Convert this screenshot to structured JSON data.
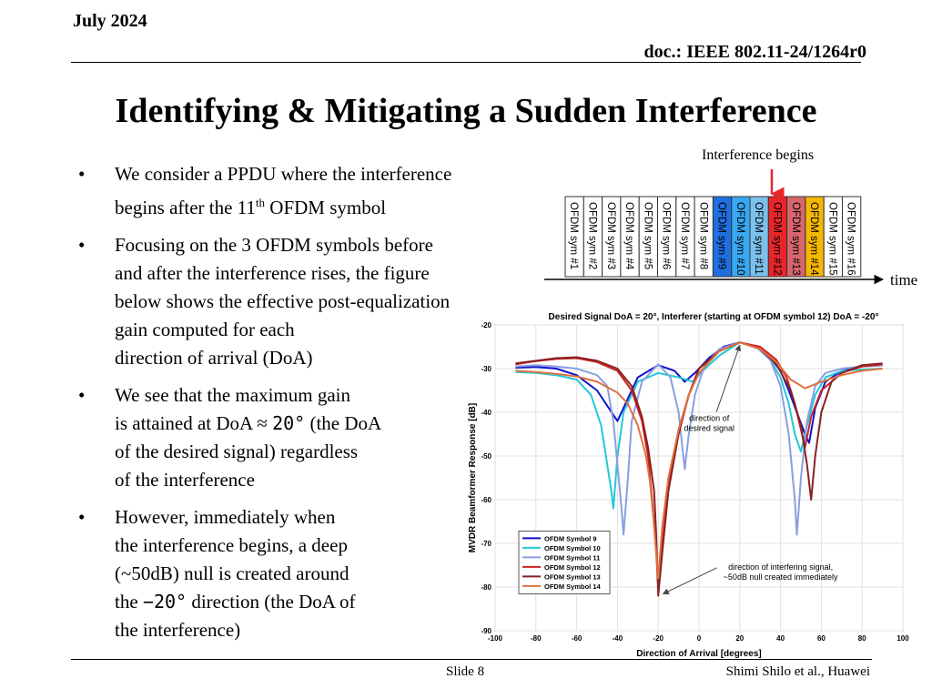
{
  "header": {
    "date": "July 2024",
    "doc": "doc.: IEEE 802.11-24/1264r0"
  },
  "title": "Identifying & Mitigating a Sudden Interference",
  "bullets": [
    {
      "lines": [
        "We consider a PPDU where the interference"
      ],
      "line2_pre": "begins after the 11",
      "line2_sup": "th",
      "line2_post": " OFDM symbol"
    },
    {
      "lines": [
        "Focusing on the 3 OFDM symbols before",
        "and after the interference rises, the figure",
        "below shows the effective post-equalization",
        "gain computed for each",
        "direction of arrival (DoA)"
      ]
    },
    {
      "lines": [
        "We see that the maximum gain"
      ],
      "line2_pre": "is attained at DoA ≈ ",
      "line2_mono": "20°",
      "line2_post": " (the DoA",
      "lines_after": [
        "of the desired signal) regardless",
        "of the interference"
      ]
    },
    {
      "lines": [
        "However, immediately when",
        "the interference begins, a deep",
        "(~50dB) null is created around"
      ],
      "line4_pre": "the ",
      "line4_mono": "−20°",
      "line4_post": " direction (the DoA of",
      "lines_after": [
        "the interference)"
      ]
    }
  ],
  "symbol_timeline": {
    "interference_label": "Interference begins",
    "time_label": "time",
    "symbols": [
      {
        "label": "OFDM sym #1",
        "color": "#ffffff"
      },
      {
        "label": "OFDM sym #2",
        "color": "#ffffff"
      },
      {
        "label": "OFDM sym #3",
        "color": "#ffffff"
      },
      {
        "label": "OFDM sym #4",
        "color": "#ffffff"
      },
      {
        "label": "OFDM sym #5",
        "color": "#ffffff"
      },
      {
        "label": "OFDM sym #6",
        "color": "#ffffff"
      },
      {
        "label": "OFDM sym #7",
        "color": "#ffffff"
      },
      {
        "label": "OFDM sym #8",
        "color": "#ffffff"
      },
      {
        "label": "OFDM sym #9",
        "color": "#1f6fe0"
      },
      {
        "label": "OFDM sym #10",
        "color": "#38a8f0"
      },
      {
        "label": "OFDM sym #11",
        "color": "#7cc0ec"
      },
      {
        "label": "OFDM sym #12",
        "color": "#e8262a"
      },
      {
        "label": "OFDM sym #13",
        "color": "#d8666e"
      },
      {
        "label": "OFDM sym #14",
        "color": "#f5b800"
      },
      {
        "label": "OFDM sym #15",
        "color": "#ffffff"
      },
      {
        "label": "OFDM sym #16",
        "color": "#ffffff"
      }
    ],
    "interference_starts_at": 12
  },
  "chart_data": {
    "type": "line",
    "title": "Desired Signal DoA = 20°, Interferer (starting at OFDM symbol 12) DoA = -20°",
    "xlabel": "Direction of Arrival [degrees]",
    "ylabel": "MVDR Beamformer Response [dB]",
    "xlim": [
      -100,
      100
    ],
    "ylim": [
      -90,
      -20
    ],
    "xticks": [
      -100,
      -80,
      -60,
      -40,
      -20,
      0,
      20,
      40,
      60,
      80,
      100
    ],
    "yticks": [
      -20,
      -30,
      -40,
      -50,
      -60,
      -70,
      -80,
      -90
    ],
    "grid": true,
    "legend_position": "bottom-left",
    "series": [
      {
        "name": "OFDM Symbol 9",
        "color": "#1111cc",
        "points": [
          [
            -90,
            -29.8
          ],
          [
            -80,
            -29.6
          ],
          [
            -70,
            -30
          ],
          [
            -60,
            -31.5
          ],
          [
            -50,
            -35
          ],
          [
            -45,
            -38.5
          ],
          [
            -40,
            -42
          ],
          [
            -35,
            -37
          ],
          [
            -30,
            -32
          ],
          [
            -20,
            -29.2
          ],
          [
            -12,
            -30.5
          ],
          [
            -7,
            -33
          ],
          [
            -2,
            -31
          ],
          [
            5,
            -27.5
          ],
          [
            12,
            -25
          ],
          [
            20,
            -24
          ],
          [
            28,
            -25
          ],
          [
            35,
            -27.5
          ],
          [
            40,
            -30.5
          ],
          [
            44,
            -35
          ],
          [
            48,
            -40
          ],
          [
            52,
            -45
          ],
          [
            54,
            -47
          ],
          [
            57,
            -39
          ],
          [
            62,
            -33
          ],
          [
            70,
            -30.5
          ],
          [
            80,
            -29.5
          ],
          [
            90,
            -29.2
          ]
        ]
      },
      {
        "name": "OFDM Symbol 10",
        "color": "#22c8d8",
        "points": [
          [
            -90,
            -30.8
          ],
          [
            -80,
            -31
          ],
          [
            -70,
            -31.5
          ],
          [
            -60,
            -32.5
          ],
          [
            -53,
            -36
          ],
          [
            -48,
            -43
          ],
          [
            -45,
            -52
          ],
          [
            -43,
            -58
          ],
          [
            -42,
            -62
          ],
          [
            -40,
            -50
          ],
          [
            -37,
            -40
          ],
          [
            -30,
            -33
          ],
          [
            -20,
            -31
          ],
          [
            -10,
            -32
          ],
          [
            -3,
            -33
          ],
          [
            3,
            -30
          ],
          [
            10,
            -27
          ],
          [
            20,
            -24
          ],
          [
            28,
            -25
          ],
          [
            35,
            -28
          ],
          [
            40,
            -32
          ],
          [
            44,
            -38
          ],
          [
            47,
            -45
          ],
          [
            50,
            -49
          ],
          [
            53,
            -43
          ],
          [
            57,
            -36
          ],
          [
            62,
            -32
          ],
          [
            70,
            -30.5
          ],
          [
            80,
            -30.2
          ],
          [
            90,
            -30
          ]
        ]
      },
      {
        "name": "OFDM Symbol 11",
        "color": "#8a9fe0",
        "points": [
          [
            -90,
            -29.5
          ],
          [
            -80,
            -29.2
          ],
          [
            -70,
            -29.5
          ],
          [
            -60,
            -30
          ],
          [
            -50,
            -31.5
          ],
          [
            -45,
            -34
          ],
          [
            -42,
            -42
          ],
          [
            -40,
            -52
          ],
          [
            -38,
            -62
          ],
          [
            -37,
            -68
          ],
          [
            -35,
            -56
          ],
          [
            -33,
            -42
          ],
          [
            -28,
            -33
          ],
          [
            -20,
            -29
          ],
          [
            -14,
            -32
          ],
          [
            -10,
            -40
          ],
          [
            -7,
            -53
          ],
          [
            -5,
            -45
          ],
          [
            -2,
            -36
          ],
          [
            3,
            -29
          ],
          [
            10,
            -25.5
          ],
          [
            20,
            -24
          ],
          [
            28,
            -25
          ],
          [
            35,
            -28
          ],
          [
            40,
            -34
          ],
          [
            44,
            -45
          ],
          [
            47,
            -60
          ],
          [
            48,
            -68
          ],
          [
            50,
            -55
          ],
          [
            53,
            -42
          ],
          [
            57,
            -34
          ],
          [
            62,
            -31
          ],
          [
            70,
            -30
          ],
          [
            80,
            -29.5
          ],
          [
            90,
            -29.3
          ]
        ]
      },
      {
        "name": "OFDM Symbol 12",
        "color": "#cc2222",
        "points": [
          [
            -90,
            -29
          ],
          [
            -80,
            -28.3
          ],
          [
            -70,
            -27.8
          ],
          [
            -60,
            -27.6
          ],
          [
            -50,
            -28.5
          ],
          [
            -40,
            -30.5
          ],
          [
            -33,
            -35
          ],
          [
            -28,
            -42
          ],
          [
            -25,
            -50
          ],
          [
            -23,
            -60
          ],
          [
            -21,
            -72
          ],
          [
            -20,
            -80
          ],
          [
            -18,
            -70
          ],
          [
            -15,
            -57
          ],
          [
            -10,
            -44
          ],
          [
            -5,
            -36
          ],
          [
            0,
            -30
          ],
          [
            10,
            -26
          ],
          [
            20,
            -24
          ],
          [
            30,
            -25
          ],
          [
            38,
            -28
          ],
          [
            43,
            -32
          ],
          [
            47,
            -38
          ],
          [
            50,
            -44
          ],
          [
            52,
            -48
          ],
          [
            55,
            -41
          ],
          [
            60,
            -35
          ],
          [
            70,
            -31
          ],
          [
            80,
            -29.5
          ],
          [
            90,
            -29
          ]
        ]
      },
      {
        "name": "OFDM Symbol 13",
        "color": "#882222",
        "points": [
          [
            -90,
            -28.8
          ],
          [
            -80,
            -28.2
          ],
          [
            -70,
            -27.6
          ],
          [
            -60,
            -27.4
          ],
          [
            -50,
            -28.2
          ],
          [
            -40,
            -30
          ],
          [
            -33,
            -34
          ],
          [
            -28,
            -41
          ],
          [
            -25,
            -48
          ],
          [
            -22,
            -58
          ],
          [
            -21,
            -68
          ],
          [
            -20,
            -82
          ],
          [
            -18,
            -72
          ],
          [
            -15,
            -58
          ],
          [
            -10,
            -45
          ],
          [
            -5,
            -36
          ],
          [
            0,
            -30
          ],
          [
            10,
            -26
          ],
          [
            20,
            -24
          ],
          [
            30,
            -25.5
          ],
          [
            38,
            -29
          ],
          [
            45,
            -35
          ],
          [
            50,
            -43
          ],
          [
            53,
            -52
          ],
          [
            55,
            -60
          ],
          [
            57,
            -50
          ],
          [
            60,
            -40
          ],
          [
            65,
            -33
          ],
          [
            70,
            -31
          ],
          [
            80,
            -29.2
          ],
          [
            90,
            -28.8
          ]
        ]
      },
      {
        "name": "OFDM Symbol 14",
        "color": "#e07040",
        "points": [
          [
            -90,
            -30.5
          ],
          [
            -80,
            -30.8
          ],
          [
            -70,
            -31.2
          ],
          [
            -60,
            -31.8
          ],
          [
            -50,
            -33
          ],
          [
            -40,
            -35.5
          ],
          [
            -35,
            -38
          ],
          [
            -30,
            -43
          ],
          [
            -26,
            -50
          ],
          [
            -24,
            -56
          ],
          [
            -22,
            -66
          ],
          [
            -20,
            -78
          ],
          [
            -18,
            -66
          ],
          [
            -15,
            -55
          ],
          [
            -10,
            -44
          ],
          [
            -5,
            -36
          ],
          [
            0,
            -31
          ],
          [
            10,
            -26
          ],
          [
            20,
            -24
          ],
          [
            30,
            -25.5
          ],
          [
            38,
            -28.5
          ],
          [
            45,
            -32.5
          ],
          [
            52,
            -34.5
          ],
          [
            60,
            -33
          ],
          [
            70,
            -31.5
          ],
          [
            80,
            -30.5
          ],
          [
            90,
            -30
          ]
        ]
      }
    ],
    "annotations": [
      {
        "text_lines": [
          "direction of",
          "desired signal"
        ],
        "text_at": [
          5,
          -42
        ],
        "points_to": [
          20,
          -24
        ]
      },
      {
        "text_lines": [
          "direction of interfering signal,",
          "~50dB null created immediately"
        ],
        "text_at": [
          40,
          -76
        ],
        "points_to": [
          -19,
          -82
        ]
      }
    ]
  },
  "footer": {
    "slide": "Slide 8",
    "author": "Shimi Shilo et al., Huawei"
  }
}
